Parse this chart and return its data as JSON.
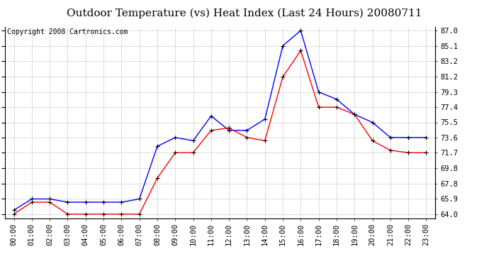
{
  "title": "Outdoor Temperature (vs) Heat Index (Last 24 Hours) 20080711",
  "copyright": "Copyright 2008 Cartronics.com",
  "x_labels": [
    "00:00",
    "01:00",
    "02:00",
    "03:00",
    "04:00",
    "05:00",
    "06:00",
    "07:00",
    "08:00",
    "09:00",
    "10:00",
    "11:00",
    "12:00",
    "13:00",
    "14:00",
    "15:00",
    "16:00",
    "17:00",
    "18:00",
    "19:00",
    "20:00",
    "21:00",
    "22:00",
    "23:00"
  ],
  "blue_data": [
    64.5,
    65.9,
    65.9,
    65.5,
    65.5,
    65.5,
    65.5,
    65.9,
    72.5,
    73.6,
    73.2,
    76.3,
    74.5,
    74.5,
    75.9,
    85.1,
    87.0,
    79.3,
    78.4,
    76.5,
    75.5,
    73.6,
    73.6,
    73.6
  ],
  "red_data": [
    64.0,
    65.5,
    65.5,
    64.0,
    64.0,
    64.0,
    64.0,
    64.0,
    68.5,
    71.7,
    71.7,
    74.5,
    74.8,
    73.6,
    73.2,
    81.2,
    84.5,
    77.4,
    77.4,
    76.5,
    73.2,
    72.0,
    71.7,
    71.7
  ],
  "y_ticks": [
    64.0,
    65.9,
    67.8,
    69.8,
    71.7,
    73.6,
    75.5,
    77.4,
    79.3,
    81.2,
    83.2,
    85.1,
    87.0
  ],
  "y_min": 63.5,
  "y_max": 87.5,
  "blue_color": "#0000FF",
  "red_color": "#FF0000",
  "bg_color": "#FFFFFF",
  "grid_color": "#BBBBBB",
  "title_fontsize": 11,
  "copyright_fontsize": 7,
  "tick_fontsize": 7.5
}
